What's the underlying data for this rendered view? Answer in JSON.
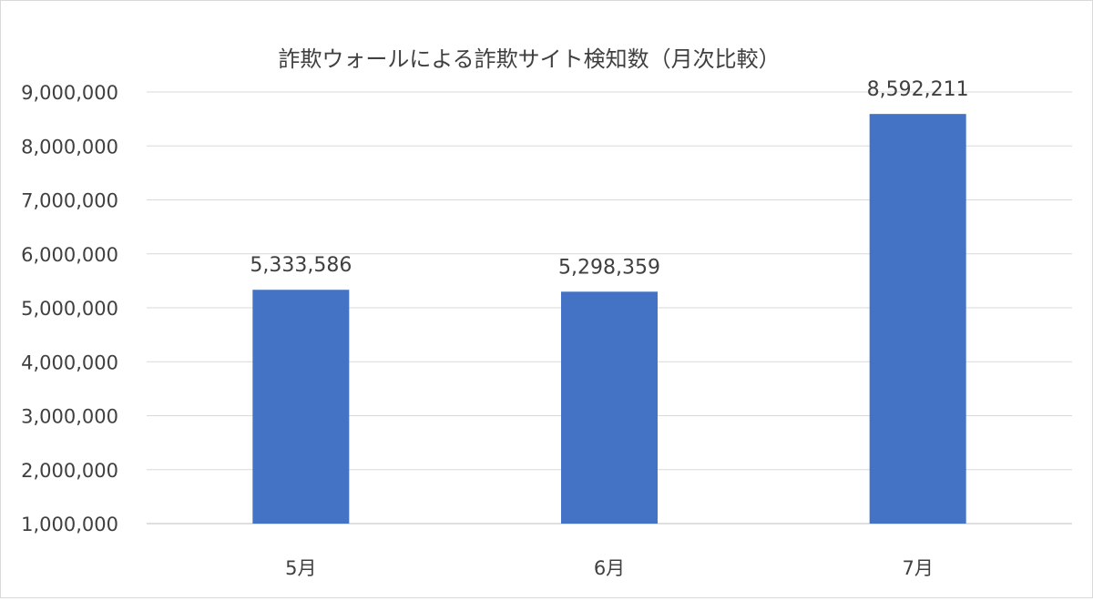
{
  "chart_data": {
    "type": "bar",
    "title": "詐欺ウォールによる詐欺サイト検知数（月次比較）",
    "categories": [
      "5月",
      "6月",
      "7月"
    ],
    "values": [
      5333586,
      5298359,
      8592211
    ],
    "data_labels": [
      "5,333,586",
      "5,298,359",
      "8,592,211"
    ],
    "ylim": [
      1000000,
      9000000
    ],
    "yticks": [
      1000000,
      2000000,
      3000000,
      4000000,
      5000000,
      6000000,
      7000000,
      8000000,
      9000000
    ],
    "ytick_labels": [
      "1,000,000",
      "2,000,000",
      "3,000,000",
      "4,000,000",
      "5,000,000",
      "6,000,000",
      "7,000,000",
      "8,000,000",
      "9,000,000"
    ],
    "xlabel": "",
    "ylabel": "",
    "grid": true,
    "bar_color": "#4472c4",
    "grid_color": "#d9d9d9",
    "text_color": "#404040"
  }
}
